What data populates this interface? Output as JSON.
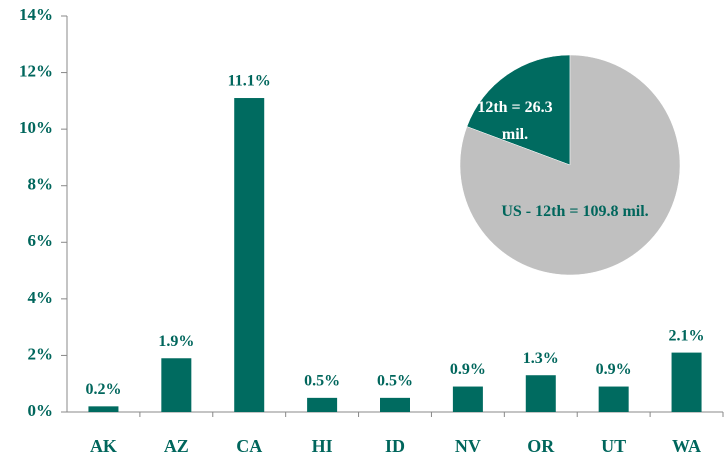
{
  "chart_data": [
    {
      "type": "bar",
      "categories": [
        "AK",
        "AZ",
        "CA",
        "HI",
        "ID",
        "NV",
        "OR",
        "UT",
        "WA"
      ],
      "values": [
        0.2,
        1.9,
        11.1,
        0.5,
        0.5,
        0.9,
        1.3,
        0.9,
        2.1
      ],
      "value_labels": [
        "0.2%",
        "1.9%",
        "11.1%",
        "0.5%",
        "0.5%",
        "0.9%",
        "1.3%",
        "0.9%",
        "2.1%"
      ],
      "color": "#006b60",
      "ylim": [
        0,
        14
      ],
      "yticks": [
        {
          "value": 0,
          "label": "0%"
        },
        {
          "value": 2,
          "label": "2%"
        },
        {
          "value": 4,
          "label": "4%"
        },
        {
          "value": 6,
          "label": "6%"
        },
        {
          "value": 8,
          "label": "8%"
        },
        {
          "value": 10,
          "label": "10%"
        },
        {
          "value": 12,
          "label": "12%"
        },
        {
          "value": 14,
          "label": "14%"
        }
      ]
    },
    {
      "type": "pie",
      "labels": [
        "12th = 26.3 mil.",
        "US - 12th = 109.8 mil."
      ],
      "values": [
        26.3,
        109.8
      ],
      "colors": [
        "#006b60",
        "#c0c0c0"
      ],
      "label_colors": [
        "#ffffff",
        "#00665c"
      ]
    }
  ]
}
